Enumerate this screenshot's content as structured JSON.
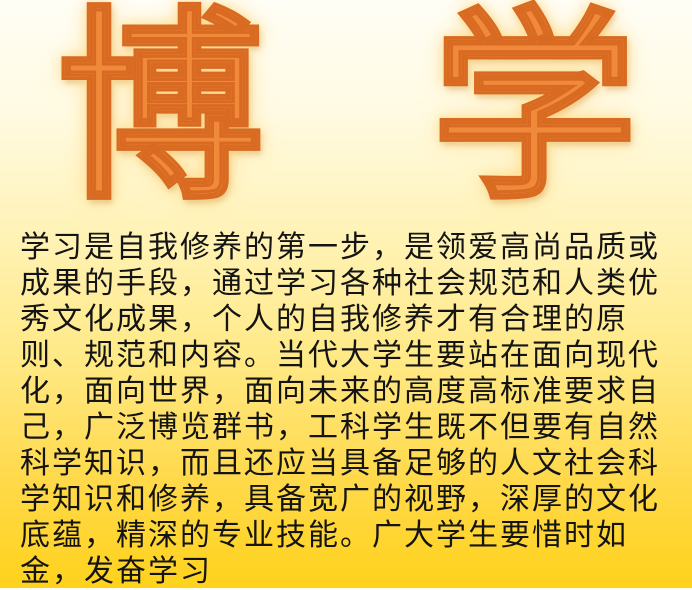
{
  "title": {
    "char1": "博",
    "char2": "学"
  },
  "body": {
    "paragraph": "学习是自我修养的第一步，是领爱高尚品质或成果的手段，通过学习各种社会规范和人类优秀文化成果，个人的自我修养才有合理的原则、规范和内容。当代大学生要站在面向现代化，面向世界，面向未来的高度高标准要求自己，广泛博览群书，工科学生既不但要有自然科学知识，而且还应当具备足够的人文社会科学知识和修养，具备宽广的视野，深厚的文化底蕴，精深的专业技能。广大学生要惜时如金，发奋学习"
  },
  "colors": {
    "title_fill": "#f08a3a",
    "title_stroke": "#d86a22",
    "text": "#141414",
    "background_top": "#fffef6",
    "background_bottom": "#ffd21c"
  }
}
